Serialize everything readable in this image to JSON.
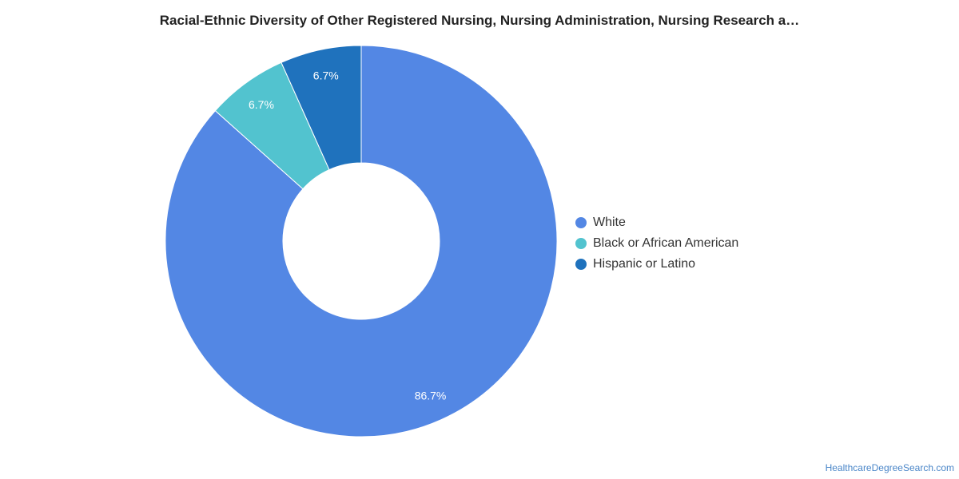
{
  "chart_data": {
    "type": "pie",
    "title": "Racial-Ethnic Diversity of Other Registered Nursing, Nursing Administration, Nursing Research a…",
    "categories": [
      "White",
      "Black or African American",
      "Hispanic or Latino"
    ],
    "values": [
      86.7,
      6.7,
      6.7
    ],
    "data_labels": [
      "86.7%",
      "6.7%",
      "6.7%"
    ],
    "colors": [
      "#5387e4",
      "#52c3cf",
      "#1f72bd"
    ],
    "donut": true,
    "legend_placement": "right"
  },
  "footer": {
    "source": "HealthcareDegreeSearch.com"
  }
}
